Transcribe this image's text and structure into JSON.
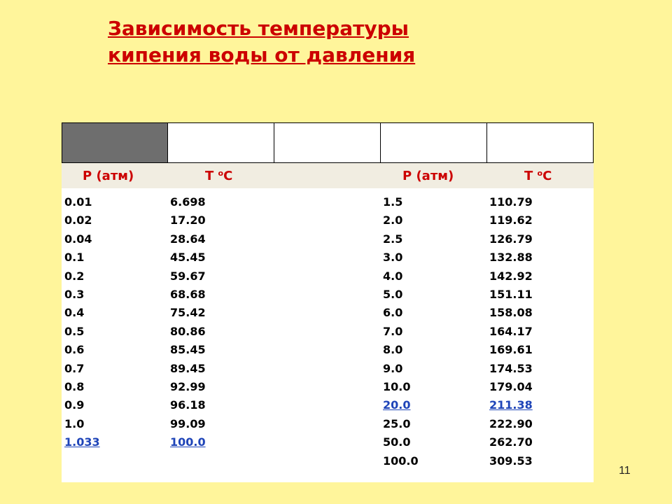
{
  "title": {
    "line1": "Зависимость температуры",
    "line2": "кипения воды от  давления"
  },
  "headers": {
    "p_left": "Р (атм)",
    "t_left": "Т ",
    "p_right": "Р (атм)",
    "t_right": "Т "
  },
  "unit_sup": "о",
  "unit_c": "С",
  "rows": [
    [
      "0.01",
      "6.698",
      "1.5",
      "110.79"
    ],
    [
      "0.02",
      "17.20",
      "2.0",
      "119.62"
    ],
    [
      "0.04",
      "28.64",
      "2.5",
      "126.79"
    ],
    [
      "0.1",
      "45.45",
      "3.0",
      "132.88"
    ],
    [
      "0.2",
      "59.67",
      "4.0",
      "142.92"
    ],
    [
      "0.3",
      "68.68",
      "5.0",
      "151.11"
    ],
    [
      "0.4",
      "75.42",
      "6.0",
      "158.08"
    ],
    [
      "0.5",
      "80.86",
      "7.0",
      "164.17"
    ],
    [
      "0.6",
      "85.45",
      "8.0",
      "169.61"
    ],
    [
      "0.7",
      "89.45",
      "9.0",
      "174.53"
    ],
    [
      "0.8",
      "92.99",
      "10.0",
      "179.04"
    ],
    [
      "0.9",
      "96.18",
      "20.0",
      "211.38"
    ],
    [
      "1.0",
      "99.09",
      "25.0",
      "222.90"
    ],
    [
      "1.033",
      "100.0",
      "50.0",
      "262.70"
    ],
    [
      "",
      "",
      "100.0",
      "309.53"
    ]
  ],
  "page_number": "11",
  "colors": {
    "background": "#FFF59B",
    "title": "#CC0000",
    "link": "#1E44B8",
    "header_cell": "#6E6E6E"
  }
}
